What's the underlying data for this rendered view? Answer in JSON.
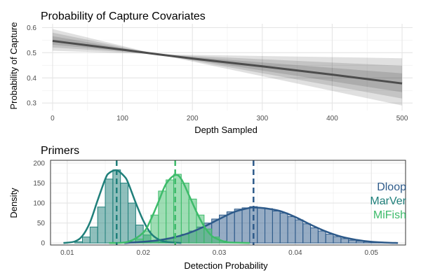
{
  "chart_data": [
    {
      "type": "line",
      "title": "Probability of Capture Covariates",
      "xlabel": "Depth Sampled",
      "ylabel": "Probability of Capture",
      "xlim": [
        -15,
        515
      ],
      "ylim": [
        0.27,
        0.615
      ],
      "x_ticks": [
        0,
        100,
        200,
        300,
        400,
        500
      ],
      "x_minor_ticks": [
        50,
        150,
        250,
        350,
        450
      ],
      "y_ticks": [
        0.3,
        0.4,
        0.5,
        0.6
      ],
      "y_minor_ticks": [
        0.35,
        0.45,
        0.55
      ],
      "grid": true,
      "series": [
        {
          "color": "#4d4d4d",
          "x": [
            0,
            100,
            150,
            200,
            300,
            400,
            500
          ],
          "y": [
            0.547,
            0.512,
            0.494,
            0.477,
            0.446,
            0.413,
            0.378
          ]
        }
      ],
      "bands": [
        {
          "color": "#000000",
          "opacity": 0.12,
          "x": [
            0,
            150,
            500
          ],
          "lower": [
            0.508,
            0.494,
            0.29
          ],
          "upper": [
            0.594,
            0.494,
            0.478
          ]
        },
        {
          "color": "#000000",
          "opacity": 0.12,
          "x": [
            0,
            150,
            500
          ],
          "lower": [
            0.521,
            0.494,
            0.318
          ],
          "upper": [
            0.58,
            0.494,
            0.448
          ]
        },
        {
          "color": "#000000",
          "opacity": 0.12,
          "x": [
            0,
            150,
            500
          ],
          "lower": [
            0.532,
            0.494,
            0.343
          ],
          "upper": [
            0.566,
            0.494,
            0.418
          ]
        }
      ]
    },
    {
      "type": "histogram",
      "title": "Primers",
      "xlabel": "Detection Probability",
      "ylabel": "Density",
      "xlim": [
        0.0078,
        0.0545
      ],
      "ylim": [
        -5,
        207
      ],
      "x_ticks": [
        0.01,
        0.02,
        0.03,
        0.04,
        0.05
      ],
      "x_minor_ticks": [
        0.015,
        0.025,
        0.035,
        0.045
      ],
      "y_ticks": [
        0,
        50,
        100,
        150,
        200
      ],
      "y_minor_ticks": [
        25,
        75,
        125,
        175
      ],
      "grid": true,
      "legend": "right",
      "bin_width": 0.001,
      "series": [
        {
          "name": "Dloop",
          "color": "#2d5a8a",
          "mean": 0.0345,
          "bin_starts": [
            0.018,
            0.019,
            0.02,
            0.021,
            0.022,
            0.023,
            0.024,
            0.025,
            0.026,
            0.027,
            0.028,
            0.029,
            0.03,
            0.031,
            0.032,
            0.033,
            0.034,
            0.035,
            0.036,
            0.037,
            0.038,
            0.039,
            0.04,
            0.041,
            0.042,
            0.043,
            0.044,
            0.045,
            0.046,
            0.047,
            0.048,
            0.049,
            0.05,
            0.051,
            0.052
          ],
          "densities": [
            1,
            2,
            3,
            5,
            8,
            12,
            16,
            22,
            30,
            40,
            50,
            60,
            70,
            78,
            85,
            88,
            91,
            88,
            86,
            80,
            75,
            66,
            58,
            48,
            38,
            30,
            22,
            16,
            11,
            7,
            5,
            3,
            2,
            1,
            1
          ],
          "curve_x": [
            0.0175,
            0.02,
            0.022,
            0.024,
            0.026,
            0.028,
            0.03,
            0.032,
            0.034,
            0.0345,
            0.036,
            0.038,
            0.04,
            0.042,
            0.044,
            0.046,
            0.048,
            0.05,
            0.052,
            0.0535
          ],
          "curve_y": [
            0,
            3,
            7,
            14,
            25,
            41,
            60,
            78,
            88,
            89,
            87,
            80,
            65,
            46,
            29,
            16,
            8,
            3,
            1,
            0
          ]
        },
        {
          "name": "MarVer",
          "color": "#1f7f7a",
          "mean": 0.0165,
          "bin_starts": [
            0.011,
            0.012,
            0.013,
            0.014,
            0.015,
            0.016,
            0.017,
            0.018,
            0.019,
            0.02,
            0.021,
            0.022,
            0.023
          ],
          "densities": [
            3,
            15,
            40,
            90,
            160,
            183,
            150,
            100,
            45,
            20,
            6,
            2,
            1
          ],
          "curve_x": [
            0.0095,
            0.011,
            0.012,
            0.013,
            0.014,
            0.015,
            0.0155,
            0.0165,
            0.0175,
            0.018,
            0.019,
            0.02,
            0.021,
            0.022,
            0.023,
            0.025
          ],
          "curve_y": [
            0,
            4,
            18,
            52,
            107,
            160,
            175,
            182,
            167,
            151,
            101,
            56,
            24,
            9,
            3,
            0
          ]
        },
        {
          "name": "MiFish",
          "color": "#3dbb6a",
          "mean": 0.0242,
          "bin_starts": [
            0.018,
            0.019,
            0.02,
            0.021,
            0.022,
            0.023,
            0.024,
            0.025,
            0.026,
            0.027,
            0.028,
            0.029,
            0.03,
            0.031
          ],
          "densities": [
            3,
            10,
            30,
            70,
            130,
            158,
            172,
            150,
            110,
            70,
            35,
            15,
            5,
            2
          ],
          "curve_x": [
            0.0155,
            0.018,
            0.02,
            0.021,
            0.022,
            0.023,
            0.0242,
            0.025,
            0.026,
            0.027,
            0.028,
            0.029,
            0.03,
            0.031,
            0.032,
            0.034
          ],
          "curve_y": [
            0,
            3,
            26,
            59,
            103,
            148,
            170,
            160,
            120,
            78,
            42,
            18,
            8,
            2,
            1,
            0
          ]
        }
      ]
    }
  ]
}
